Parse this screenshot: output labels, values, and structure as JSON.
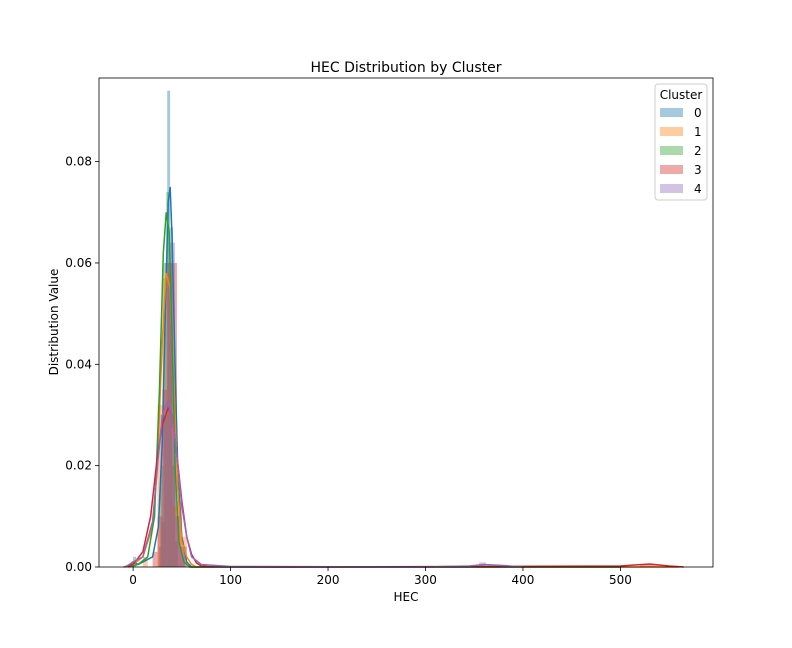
{
  "chart_data": {
    "type": "histogram",
    "title": "HEC Distribution by Cluster",
    "xlabel": "HEC",
    "ylabel": "Distribution Value",
    "xlim": [
      -35,
      595
    ],
    "ylim": [
      0,
      0.0965
    ],
    "xticks": [
      0,
      100,
      200,
      300,
      400,
      500
    ],
    "yticks": [
      0.0,
      0.02,
      0.04,
      0.06,
      0.08
    ],
    "ytick_labels": [
      "0.00",
      "0.02",
      "0.04",
      "0.06",
      "0.08"
    ],
    "grid": false,
    "legend": {
      "title": "Cluster",
      "position": "top-right"
    },
    "series": [
      {
        "name": "0",
        "color": "#1f77b4",
        "bins": [
          {
            "x0": 0,
            "x1": 3,
            "h": 0.002
          },
          {
            "x0": 26,
            "x1": 29,
            "h": 0.004
          },
          {
            "x0": 29,
            "x1": 32,
            "h": 0.009
          },
          {
            "x0": 32,
            "x1": 35,
            "h": 0.03
          },
          {
            "x0": 35,
            "x1": 38,
            "h": 0.094
          },
          {
            "x0": 38,
            "x1": 41,
            "h": 0.067
          },
          {
            "x0": 41,
            "x1": 44,
            "h": 0.027
          },
          {
            "x0": 44,
            "x1": 47,
            "h": 0.01
          },
          {
            "x0": 47,
            "x1": 50,
            "h": 0.004
          },
          {
            "x0": 50,
            "x1": 53,
            "h": 0.002
          }
        ],
        "kde": [
          [
            -5,
            0
          ],
          [
            0,
            0.001
          ],
          [
            5,
            0.0005
          ],
          [
            20,
            0.002
          ],
          [
            26,
            0.008
          ],
          [
            30,
            0.025
          ],
          [
            33,
            0.05
          ],
          [
            36,
            0.072
          ],
          [
            38,
            0.075
          ],
          [
            40,
            0.065
          ],
          [
            43,
            0.04
          ],
          [
            46,
            0.018
          ],
          [
            50,
            0.006
          ],
          [
            55,
            0.001
          ],
          [
            60,
            0
          ],
          [
            500,
            0
          ]
        ]
      },
      {
        "name": "1",
        "color": "#ff7f0e",
        "bins": [
          {
            "x0": 10,
            "x1": 15,
            "h": 0.002
          },
          {
            "x0": 25,
            "x1": 30,
            "h": 0.032
          },
          {
            "x0": 30,
            "x1": 35,
            "h": 0.057
          },
          {
            "x0": 35,
            "x1": 40,
            "h": 0.058
          },
          {
            "x0": 40,
            "x1": 45,
            "h": 0.012
          },
          {
            "x0": 45,
            "x1": 50,
            "h": 0.01
          },
          {
            "x0": 50,
            "x1": 55,
            "h": 0.006
          },
          {
            "x0": 535,
            "x1": 545,
            "h": 0.0004
          }
        ],
        "kde": [
          [
            -10,
            0
          ],
          [
            0,
            0.0005
          ],
          [
            10,
            0.002
          ],
          [
            20,
            0.008
          ],
          [
            25,
            0.02
          ],
          [
            30,
            0.045
          ],
          [
            34,
            0.058
          ],
          [
            38,
            0.055
          ],
          [
            42,
            0.035
          ],
          [
            46,
            0.015
          ],
          [
            50,
            0.005
          ],
          [
            55,
            0.002
          ],
          [
            60,
            0.0005
          ],
          [
            65,
            0
          ],
          [
            560,
            0
          ]
        ]
      },
      {
        "name": "2",
        "color": "#2ca02c",
        "bins": [
          {
            "x0": 28,
            "x1": 31,
            "h": 0.02
          },
          {
            "x0": 31,
            "x1": 34,
            "h": 0.06
          },
          {
            "x0": 34,
            "x1": 37,
            "h": 0.074
          },
          {
            "x0": 37,
            "x1": 40,
            "h": 0.06
          },
          {
            "x0": 40,
            "x1": 43,
            "h": 0.02
          },
          {
            "x0": 43,
            "x1": 46,
            "h": 0.005
          }
        ],
        "kde": [
          [
            -5,
            0
          ],
          [
            5,
            0.0005
          ],
          [
            15,
            0.002
          ],
          [
            22,
            0.01
          ],
          [
            27,
            0.035
          ],
          [
            31,
            0.062
          ],
          [
            34,
            0.07
          ],
          [
            37,
            0.066
          ],
          [
            40,
            0.045
          ],
          [
            43,
            0.02
          ],
          [
            47,
            0.005
          ],
          [
            52,
            0.001
          ],
          [
            58,
            0
          ],
          [
            500,
            0
          ]
        ]
      },
      {
        "name": "3",
        "color": "#d62728",
        "bins": [
          {
            "x0": 20,
            "x1": 25,
            "h": 0.003
          },
          {
            "x0": 25,
            "x1": 30,
            "h": 0.01
          },
          {
            "x0": 30,
            "x1": 35,
            "h": 0.035
          },
          {
            "x0": 35,
            "x1": 40,
            "h": 0.06
          },
          {
            "x0": 40,
            "x1": 45,
            "h": 0.06
          },
          {
            "x0": 45,
            "x1": 50,
            "h": 0.013
          },
          {
            "x0": 50,
            "x1": 55,
            "h": 0.004
          },
          {
            "x0": 520,
            "x1": 535,
            "h": 0.0006
          }
        ],
        "kde": [
          [
            -8,
            0
          ],
          [
            0,
            0.0005
          ],
          [
            10,
            0.003
          ],
          [
            18,
            0.01
          ],
          [
            25,
            0.022
          ],
          [
            30,
            0.028
          ],
          [
            36,
            0.0315
          ],
          [
            40,
            0.03
          ],
          [
            45,
            0.022
          ],
          [
            50,
            0.013
          ],
          [
            55,
            0.006
          ],
          [
            60,
            0.0025
          ],
          [
            65,
            0.0008
          ],
          [
            70,
            0.0002
          ],
          [
            80,
            5e-05
          ],
          [
            150,
            0
          ],
          [
            500,
            0.0002
          ],
          [
            530,
            0.0006
          ],
          [
            550,
            0.0002
          ],
          [
            565,
            0
          ]
        ]
      },
      {
        "name": "4",
        "color": "#9467bd",
        "bins": [
          {
            "x0": 28,
            "x1": 33,
            "h": 0.03
          },
          {
            "x0": 33,
            "x1": 38,
            "h": 0.06
          },
          {
            "x0": 38,
            "x1": 43,
            "h": 0.064
          },
          {
            "x0": 43,
            "x1": 48,
            "h": 0.01
          },
          {
            "x0": 48,
            "x1": 53,
            "h": 0.004
          },
          {
            "x0": 355,
            "x1": 362,
            "h": 0.0009
          }
        ],
        "kde": [
          [
            -8,
            0
          ],
          [
            0,
            0.001
          ],
          [
            10,
            0.002
          ],
          [
            20,
            0.009
          ],
          [
            25,
            0.02
          ],
          [
            30,
            0.03
          ],
          [
            35,
            0.0325
          ],
          [
            40,
            0.03
          ],
          [
            45,
            0.022
          ],
          [
            50,
            0.012
          ],
          [
            55,
            0.006
          ],
          [
            60,
            0.002
          ],
          [
            70,
            0.0005
          ],
          [
            100,
            0.0001
          ],
          [
            300,
            0
          ],
          [
            345,
            0.0002
          ],
          [
            360,
            0.0005
          ],
          [
            380,
            0.0003
          ],
          [
            400,
            0
          ]
        ]
      }
    ]
  }
}
